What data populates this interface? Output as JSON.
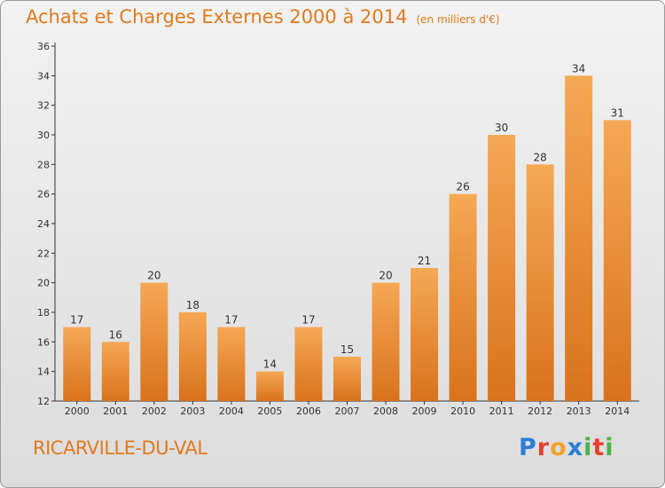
{
  "chart_data": {
    "type": "bar",
    "title": "Achats et Charges Externes 2000 à 2014",
    "subtitle": "(en milliers d'€)",
    "categories": [
      "2000",
      "2001",
      "2002",
      "2003",
      "2004",
      "2005",
      "2006",
      "2007",
      "2008",
      "2009",
      "2010",
      "2011",
      "2012",
      "2013",
      "2014"
    ],
    "values": [
      17,
      16,
      20,
      18,
      17,
      14,
      17,
      15,
      20,
      21,
      26,
      30,
      28,
      34,
      31
    ],
    "ylim": [
      12,
      36
    ],
    "yticks": [
      12,
      14,
      16,
      18,
      20,
      22,
      24,
      26,
      28,
      30,
      32,
      34,
      36
    ],
    "grid": false,
    "legend": "none",
    "bar_color_top": "#f5a855",
    "bar_color_bottom": "#d9721c"
  },
  "footer": {
    "commune": "RICARVILLE-DU-VAL",
    "brand": [
      "P",
      "r",
      "o",
      "x",
      "i",
      "t",
      "i"
    ]
  }
}
